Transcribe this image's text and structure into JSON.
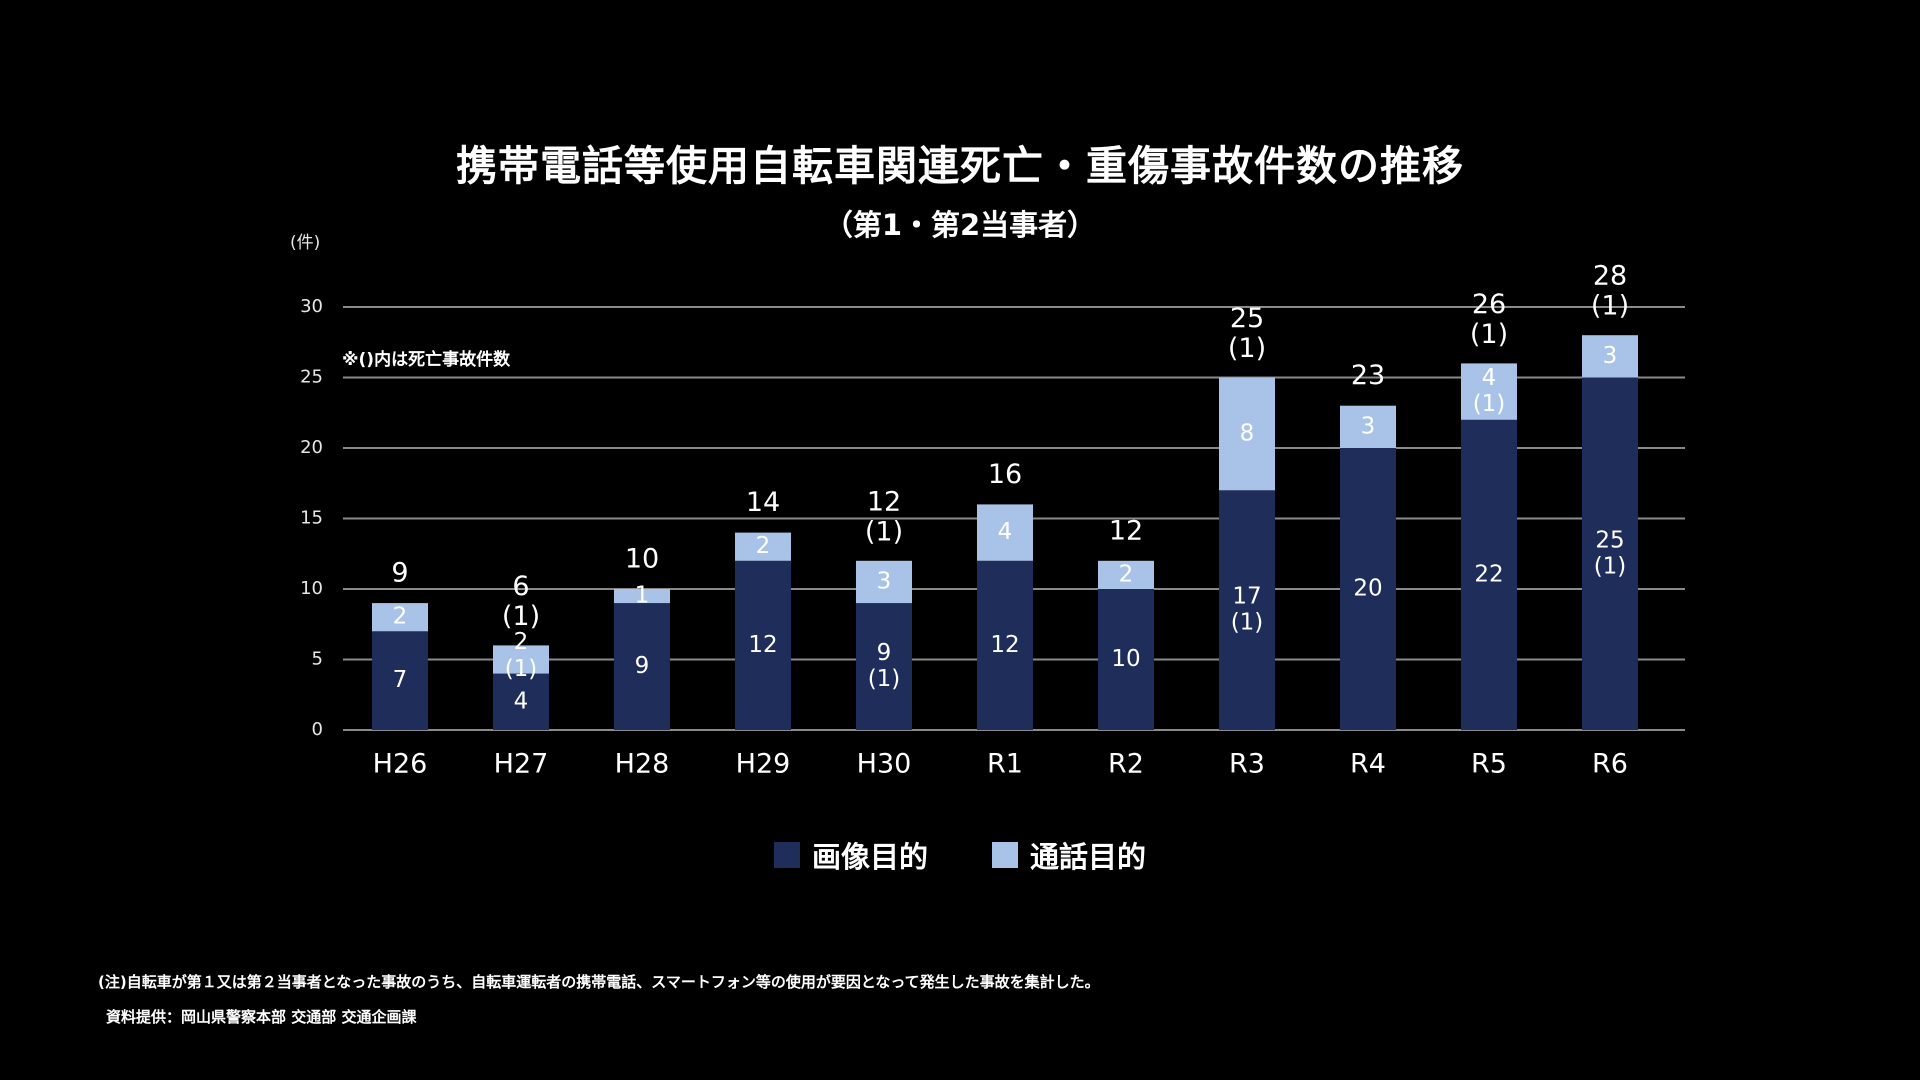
{
  "title": "携帯電話等使用自転車関連死亡・重傷事故件数の推移",
  "subtitle": "（第1・第2当事者）",
  "unit_label": "(件)",
  "note": "※()内は死亡事故件数",
  "footnote": "(注)自転車が第１又は第２当事者となった事故のうち、自転車運転者の携帯電話、スマートフォン等の使用が要因となって発生した事故を集計した。",
  "source": "資料提供：岡山県警察本部 交通部 交通企画課",
  "colors": {
    "background": "#000000",
    "image_purpose": "#1f2d5a",
    "call_purpose": "#a9c3e8",
    "gridline": "#8a8a8a",
    "text": "#ffffff"
  },
  "chart_data": {
    "type": "bar",
    "stacked": true,
    "title": "携帯電話等使用自転車関連死亡・重傷事故件数の推移",
    "subtitle": "（第1・第2当事者）",
    "xlabel": "",
    "ylabel": "(件)",
    "ylim": [
      0,
      30
    ],
    "yticks": [
      "0",
      "5",
      "10",
      "15",
      "20",
      "25",
      "30"
    ],
    "grid": true,
    "legend_position": "bottom",
    "categories": [
      "H26",
      "H27",
      "H28",
      "H29",
      "H30",
      "R1",
      "R2",
      "R3",
      "R4",
      "R5",
      "R6"
    ],
    "series": [
      {
        "name": "画像目的",
        "color": "#1f2d5a",
        "values": [
          7,
          4,
          9,
          12,
          9,
          12,
          10,
          17,
          20,
          22,
          25
        ],
        "fatal": [
          null,
          null,
          null,
          null,
          1,
          null,
          null,
          1,
          null,
          null,
          1
        ]
      },
      {
        "name": "通話目的",
        "color": "#a9c3e8",
        "values": [
          2,
          2,
          1,
          2,
          3,
          4,
          2,
          8,
          3,
          4,
          3
        ],
        "fatal": [
          null,
          1,
          null,
          null,
          null,
          null,
          null,
          null,
          null,
          1,
          null
        ]
      }
    ],
    "totals": [
      9,
      6,
      10,
      14,
      12,
      16,
      12,
      25,
      23,
      26,
      28
    ],
    "total_fatal": [
      null,
      1,
      null,
      null,
      1,
      null,
      null,
      1,
      null,
      1,
      1
    ]
  }
}
